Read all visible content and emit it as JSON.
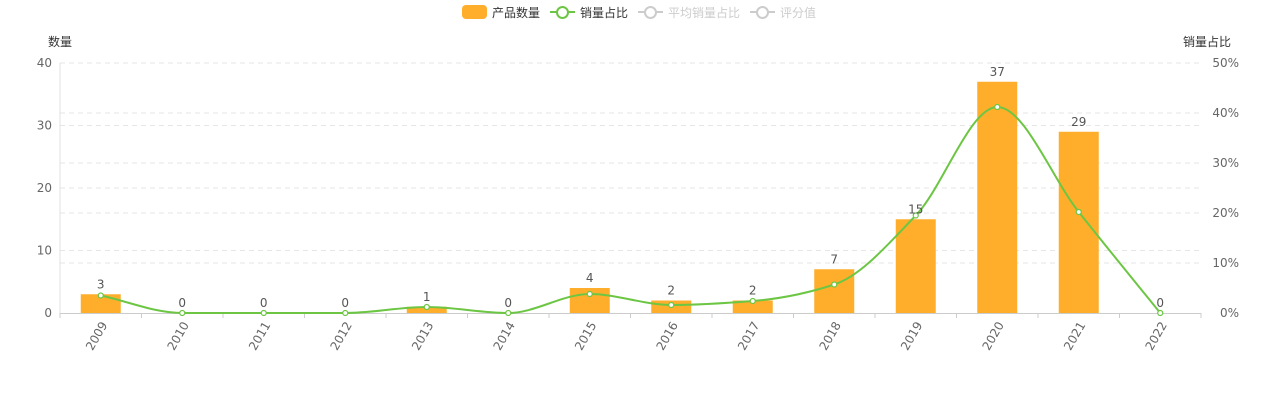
{
  "legend": [
    {
      "label": "产品数量",
      "color": "#ffae2b",
      "kind": "bar",
      "active": true
    },
    {
      "label": "销量占比",
      "color": "#6cc644",
      "kind": "line",
      "active": true
    },
    {
      "label": "平均销量占比",
      "color": "#cccccc",
      "kind": "line",
      "active": false
    },
    {
      "label": "评分值",
      "color": "#cccccc",
      "kind": "line",
      "active": false
    }
  ],
  "chart_data": {
    "type": "bar",
    "categories": [
      "2009",
      "2010",
      "2011",
      "2012",
      "2013",
      "2014",
      "2015",
      "2016",
      "2017",
      "2018",
      "2019",
      "2020",
      "2021",
      "2022"
    ],
    "series": [
      {
        "name": "产品数量",
        "type": "bar",
        "axis": "left",
        "color": "#ffae2b",
        "values": [
          3,
          0,
          0,
          0,
          1,
          0,
          4,
          2,
          2,
          7,
          15,
          37,
          29,
          0
        ]
      },
      {
        "name": "销量占比",
        "type": "line",
        "axis": "right",
        "color": "#6cc644",
        "smooth": true,
        "values": [
          3.5,
          0,
          0,
          0,
          1.2,
          0,
          3.8,
          1.6,
          2.4,
          5.7,
          19.5,
          41.2,
          20.2,
          0
        ]
      }
    ],
    "ylabel_left": "数量",
    "ylabel_right": "销量占比",
    "ylim_left": [
      0,
      40
    ],
    "yticks_left": [
      "0",
      "10",
      "20",
      "30",
      "40"
    ],
    "ylim_right": [
      0,
      50
    ],
    "yticks_right": [
      "0%",
      "10%",
      "20%",
      "30%",
      "40%",
      "50%"
    ],
    "grid": true,
    "legend_position": "top-center"
  }
}
